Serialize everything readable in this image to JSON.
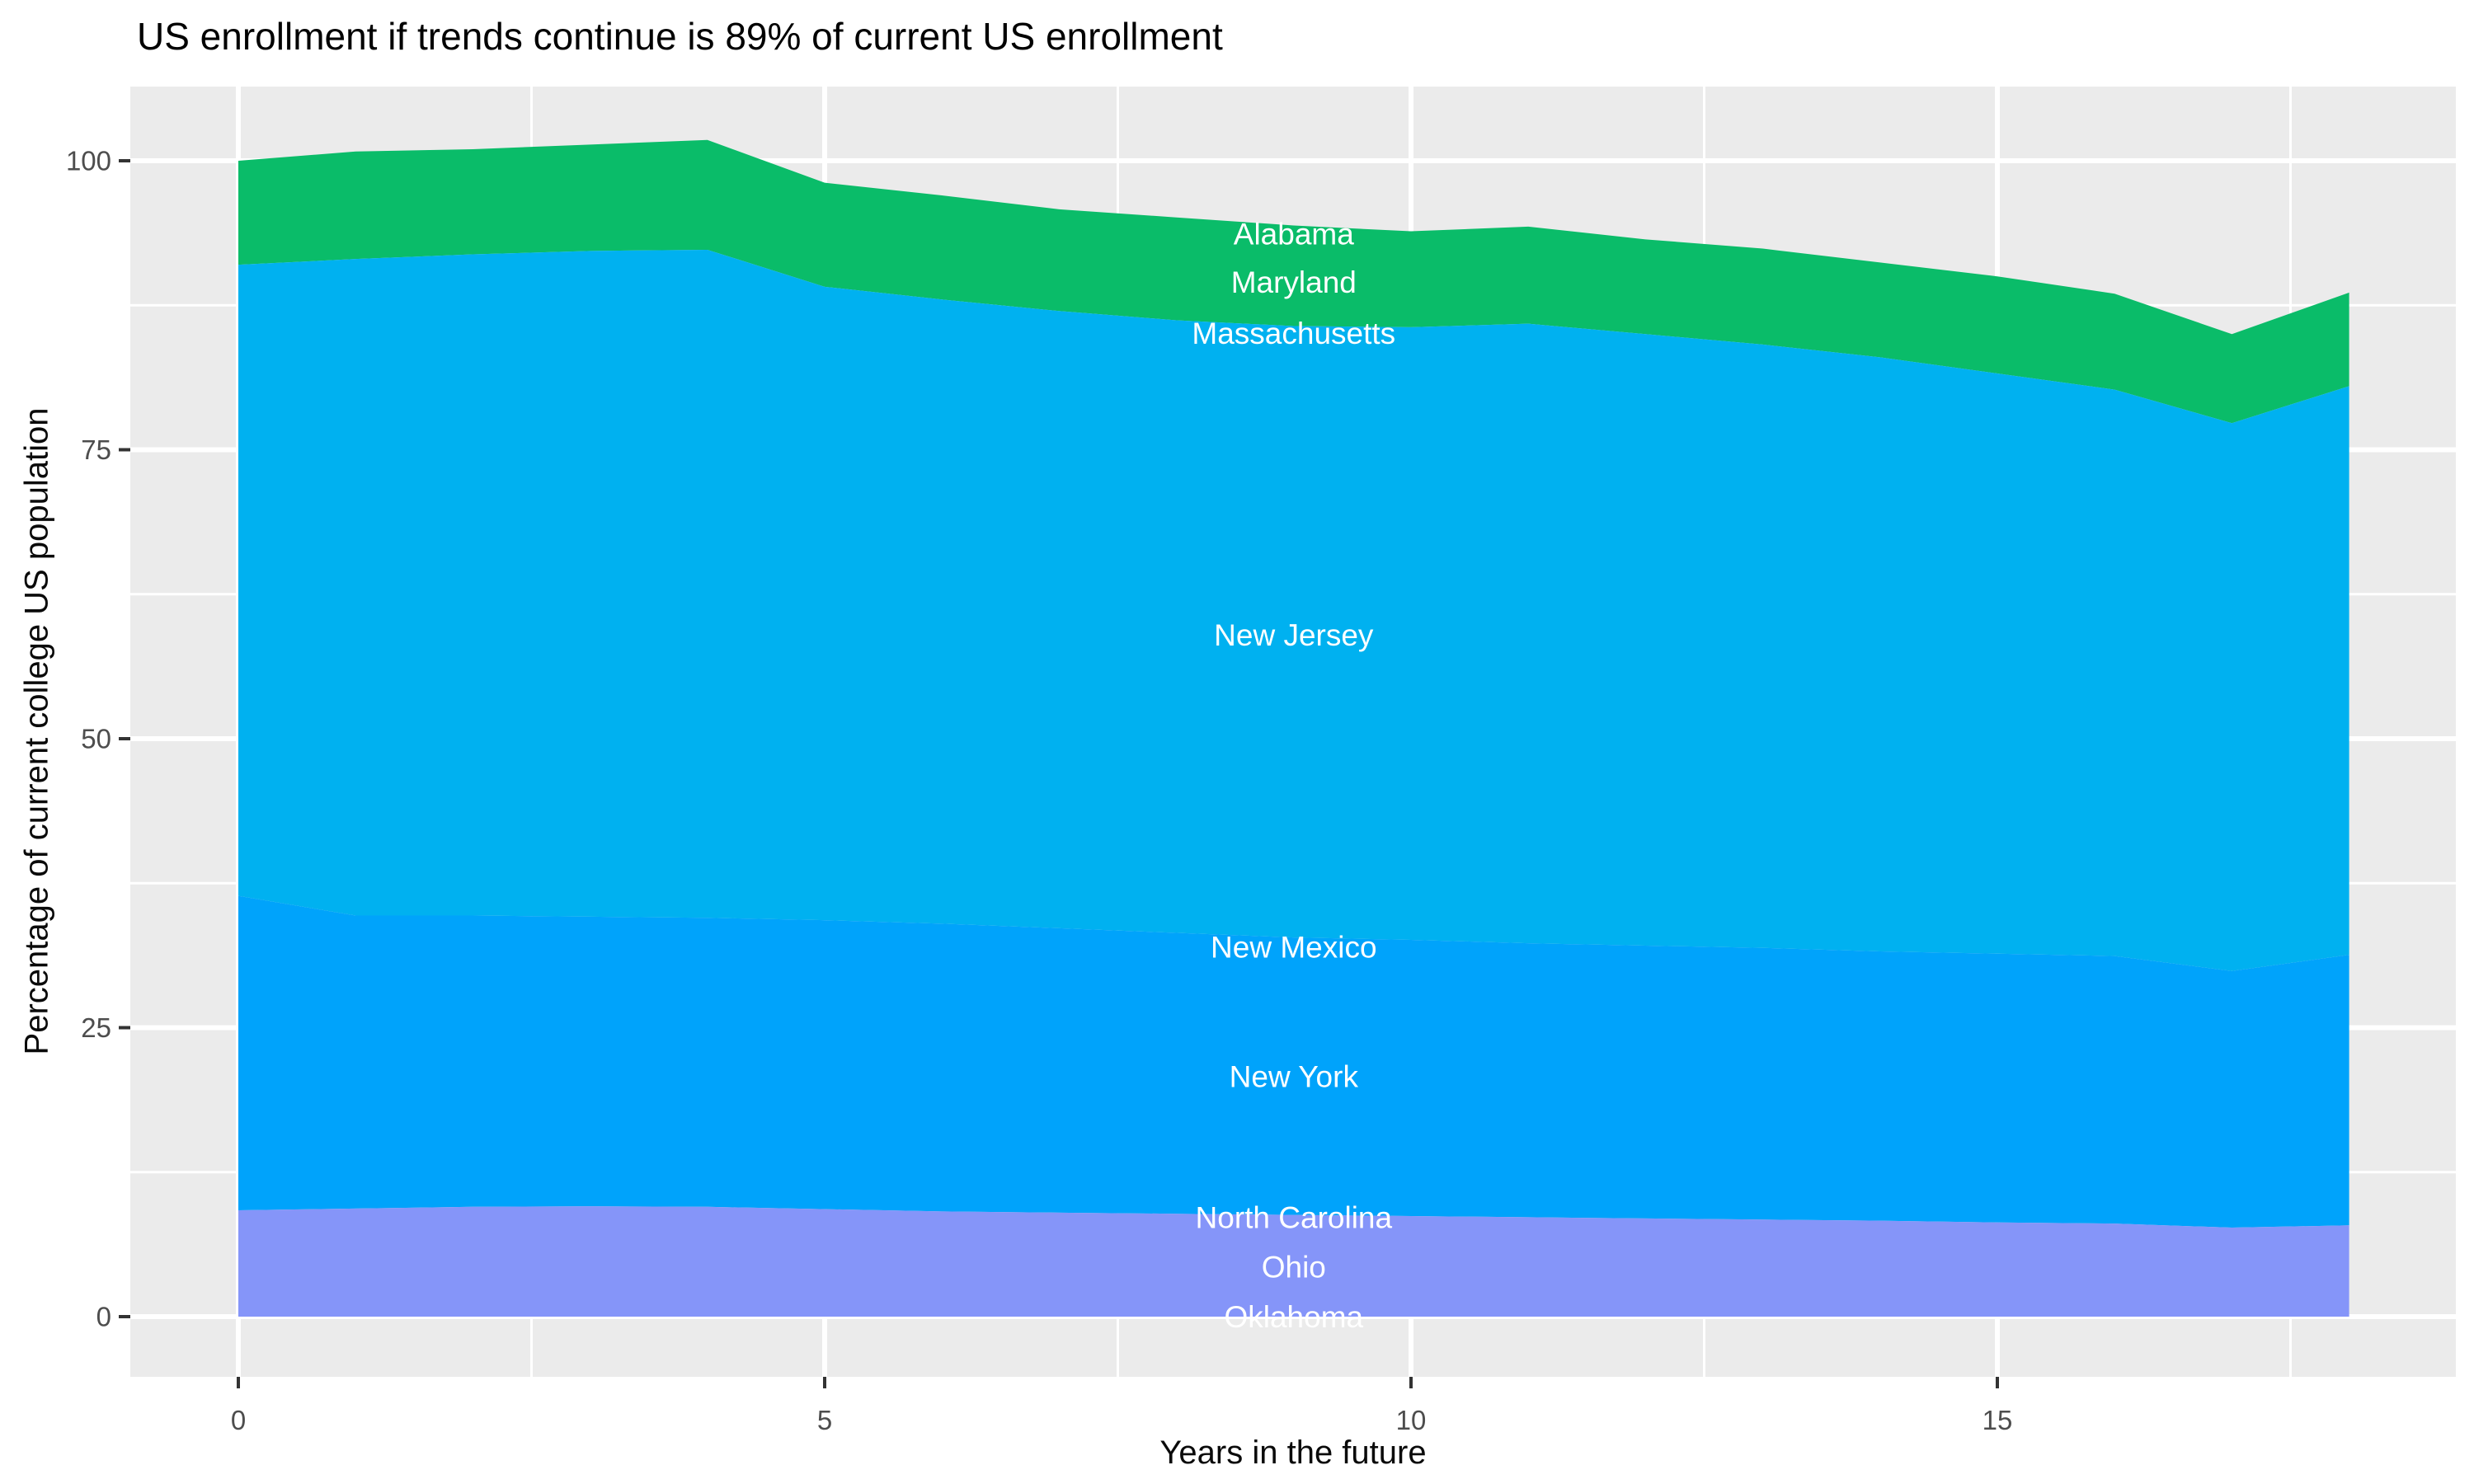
{
  "title": "US enrollment if trends continue is 89% of current US enrollment",
  "x_axis": {
    "label": "Years in the future",
    "major_ticks": [
      0,
      5,
      10,
      15
    ],
    "minor_ticks": [
      2.5,
      7.5,
      12.5,
      17.5
    ],
    "range": [
      0,
      18
    ]
  },
  "y_axis": {
    "label": "Percentage of current college US population",
    "major_ticks": [
      0,
      25,
      50,
      75,
      100
    ],
    "minor_ticks": [
      12.5,
      37.5,
      62.5,
      87.5
    ],
    "range": [
      0,
      102
    ]
  },
  "colors": {
    "panel_background": "#EBEBEB",
    "gridline": "#FFFFFF",
    "tick_mark": "#333333",
    "tick_label": "#4D4D4D",
    "title_text": "#000000",
    "area_label_text": "#FFFFFF",
    "band_green": "#0ABC69",
    "band_cyan": "#00B1F0",
    "band_blue": "#00A3FB",
    "band_periwinkle": "#8595F9"
  },
  "chart_data": {
    "type": "area",
    "stacked": true,
    "title": "US enrollment if trends continue is 89% of current US enrollment",
    "xlabel": "Years in the future",
    "ylabel": "Percentage of current college US population",
    "xlim": [
      0,
      18
    ],
    "ylim": [
      0,
      102
    ],
    "grid": "on",
    "legend": "none",
    "x": [
      0,
      1,
      2,
      3,
      4,
      5,
      6,
      7,
      8,
      9,
      10,
      11,
      12,
      13,
      14,
      15,
      16,
      17,
      18
    ],
    "boundaries": {
      "total_top": [
        100,
        100.8,
        101.0,
        101.4,
        101.8,
        98.1,
        97.0,
        95.8,
        95.1,
        94.4,
        93.9,
        94.3,
        93.2,
        92.4,
        91.2,
        90.0,
        88.5,
        85.0,
        88.6
      ],
      "green_bottom": [
        91.0,
        91.5,
        91.9,
        92.2,
        92.3,
        89.1,
        88.0,
        87.0,
        86.2,
        85.7,
        85.6,
        85.9,
        85.0,
        84.1,
        83.0,
        81.6,
        80.2,
        77.3,
        80.5
      ],
      "cyan_bottom": [
        36.4,
        34.7,
        34.7,
        34.6,
        34.5,
        34.3,
        34.0,
        33.6,
        33.2,
        32.8,
        32.6,
        32.3,
        32.1,
        31.9,
        31.6,
        31.4,
        31.2,
        29.9,
        31.3
      ],
      "blue_bottom": [
        9.2,
        9.35,
        9.5,
        9.55,
        9.5,
        9.3,
        9.1,
        9.0,
        8.9,
        8.8,
        8.7,
        8.6,
        8.5,
        8.4,
        8.3,
        8.15,
        8.05,
        7.7,
        7.9
      ],
      "zero": [
        0,
        0,
        0,
        0,
        0,
        0,
        0,
        0,
        0,
        0,
        0,
        0,
        0,
        0,
        0,
        0,
        0,
        0,
        0
      ]
    },
    "bands": [
      {
        "name": "green-band",
        "states": [
          "Alabama",
          "Maryland",
          "Massachusetts"
        ],
        "color_key": "band_green",
        "top": "total_top",
        "bottom": "green_bottom"
      },
      {
        "name": "cyan-band",
        "states": [
          "New Jersey"
        ],
        "color_key": "band_cyan",
        "top": "green_bottom",
        "bottom": "cyan_bottom"
      },
      {
        "name": "blue-band",
        "states": [
          "New Mexico",
          "New York"
        ],
        "color_key": "band_blue",
        "top": "cyan_bottom",
        "bottom": "blue_bottom"
      },
      {
        "name": "periwinkle-band",
        "states": [
          "North Carolina",
          "Ohio",
          "Oklahoma"
        ],
        "color_key": "band_periwinkle",
        "top": "blue_bottom",
        "bottom": "zero"
      }
    ],
    "state_labels": [
      {
        "text": "Alabama",
        "x": 9,
        "y": 93.7
      },
      {
        "text": "Maryland",
        "x": 9,
        "y": 89.5
      },
      {
        "text": "Massachusetts",
        "x": 9,
        "y": 85.1
      },
      {
        "text": "New Jersey",
        "x": 9,
        "y": 59.0
      },
      {
        "text": "New Mexico",
        "x": 9,
        "y": 32.0
      },
      {
        "text": "New York",
        "x": 9,
        "y": 20.8
      },
      {
        "text": "North Carolina",
        "x": 9,
        "y": 8.6
      },
      {
        "text": "Ohio",
        "x": 9,
        "y": 4.3
      },
      {
        "text": "Oklahoma",
        "x": 9,
        "y": 0.0
      }
    ]
  }
}
